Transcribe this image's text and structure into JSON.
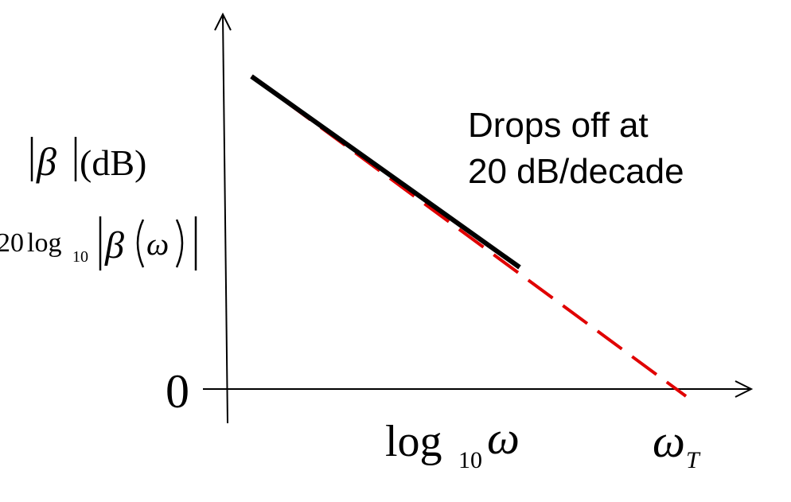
{
  "ylabel": {
    "line1_beta": "β",
    "line1_unit": "(dB)",
    "line2_prefix": "20",
    "line2_log": "log",
    "line2_sub": "10",
    "line2_beta": "β",
    "line2_omega": "ω"
  },
  "xlabel": {
    "log": "log",
    "sub": "10",
    "omega": "ω"
  },
  "zero_label": "0",
  "omega_t": {
    "omega": "ω",
    "sub": "T"
  },
  "annotation": {
    "line1": "Drops off at",
    "line2": "20 dB/decade"
  },
  "colors": {
    "axis": "#000000",
    "solid_line": "#000000",
    "dashed_line": "#e00000"
  }
}
